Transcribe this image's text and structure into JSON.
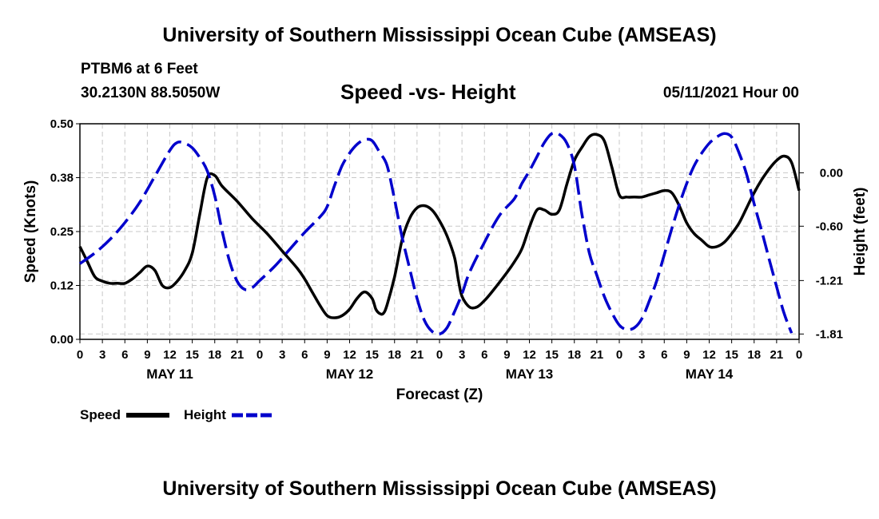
{
  "title": "University of Southern Mississippi Ocean Cube (AMSEAS)",
  "footer_title": "University of Southern Mississippi Ocean Cube (AMSEAS)",
  "station": "PTBM6 at 6 Feet",
  "coordinates": "30.2130N  88.5050W",
  "date_label": "05/11/2021 Hour 00",
  "colors": {
    "speed": "#000000",
    "height": "#0000cc",
    "grid": "#c8c8c8"
  },
  "chart_data": {
    "type": "line",
    "title": "Speed -vs- Height",
    "xlabel": "Forecast (Z)",
    "ylabel": "Speed (Knots)",
    "y2label": "Height (feet)",
    "xlim": [
      0,
      96
    ],
    "ylim": [
      0,
      0.5
    ],
    "y2lim": [
      -1.87,
      0.55
    ],
    "x_tick_labels": [
      "0",
      "3",
      "6",
      "9",
      "12",
      "15",
      "18",
      "21",
      "0",
      "3",
      "6",
      "9",
      "12",
      "15",
      "18",
      "21",
      "0",
      "3",
      "6",
      "9",
      "12",
      "15",
      "18",
      "21",
      "0",
      "3",
      "6",
      "9",
      "12",
      "15",
      "18",
      "21",
      "0"
    ],
    "date_labels": [
      {
        "x": 12,
        "label": "MAY 11"
      },
      {
        "x": 36,
        "label": "MAY 12"
      },
      {
        "x": 60,
        "label": "MAY 13"
      },
      {
        "x": 84,
        "label": "MAY 14"
      }
    ],
    "y_ticks": [
      {
        "value": 0.0,
        "label": "0.00"
      },
      {
        "value": 0.125,
        "label": "0.12"
      },
      {
        "value": 0.25,
        "label": "0.25"
      },
      {
        "value": 0.375,
        "label": "0.38"
      },
      {
        "value": 0.5,
        "label": "0.50"
      }
    ],
    "y2_ticks": [
      {
        "value": 0.0,
        "label": "0.00"
      },
      {
        "value": -0.6,
        "label": "-0.60"
      },
      {
        "value": -1.21,
        "label": "-1.21"
      },
      {
        "value": -1.81,
        "label": "-1.81"
      }
    ],
    "grid": true,
    "legend": {
      "position": "bottom-left",
      "entries": [
        "Speed",
        "Height"
      ]
    },
    "series": [
      {
        "name": "Speed",
        "axis": "left",
        "style": "solid",
        "points": [
          [
            0,
            0.215
          ],
          [
            1,
            0.18
          ],
          [
            2,
            0.145
          ],
          [
            3,
            0.135
          ],
          [
            4,
            0.13
          ],
          [
            5,
            0.13
          ],
          [
            6,
            0.13
          ],
          [
            7,
            0.14
          ],
          [
            8,
            0.155
          ],
          [
            9,
            0.17
          ],
          [
            10,
            0.16
          ],
          [
            11,
            0.125
          ],
          [
            12,
            0.12
          ],
          [
            13,
            0.135
          ],
          [
            14,
            0.16
          ],
          [
            15,
            0.2
          ],
          [
            16,
            0.29
          ],
          [
            17,
            0.375
          ],
          [
            18,
            0.38
          ],
          [
            19,
            0.355
          ],
          [
            21,
            0.32
          ],
          [
            23,
            0.28
          ],
          [
            25,
            0.245
          ],
          [
            27,
            0.205
          ],
          [
            29,
            0.165
          ],
          [
            30,
            0.14
          ],
          [
            31,
            0.11
          ],
          [
            32,
            0.08
          ],
          [
            33,
            0.055
          ],
          [
            34,
            0.05
          ],
          [
            35,
            0.055
          ],
          [
            36,
            0.07
          ],
          [
            37,
            0.095
          ],
          [
            38,
            0.11
          ],
          [
            39,
            0.095
          ],
          [
            39.5,
            0.07
          ],
          [
            40,
            0.06
          ],
          [
            40.5,
            0.06
          ],
          [
            41,
            0.08
          ],
          [
            42,
            0.145
          ],
          [
            43,
            0.23
          ],
          [
            44,
            0.28
          ],
          [
            45,
            0.305
          ],
          [
            46,
            0.31
          ],
          [
            47,
            0.3
          ],
          [
            48,
            0.275
          ],
          [
            49,
            0.24
          ],
          [
            50,
            0.19
          ],
          [
            50.5,
            0.14
          ],
          [
            51,
            0.1
          ],
          [
            52,
            0.075
          ],
          [
            53,
            0.075
          ],
          [
            54,
            0.09
          ],
          [
            55,
            0.11
          ],
          [
            57,
            0.155
          ],
          [
            58,
            0.18
          ],
          [
            59,
            0.21
          ],
          [
            60,
            0.26
          ],
          [
            61,
            0.3
          ],
          [
            62,
            0.3
          ],
          [
            63,
            0.29
          ],
          [
            64,
            0.3
          ],
          [
            65,
            0.36
          ],
          [
            66,
            0.415
          ],
          [
            67,
            0.445
          ],
          [
            68,
            0.47
          ],
          [
            69,
            0.475
          ],
          [
            70,
            0.46
          ],
          [
            71,
            0.4
          ],
          [
            72,
            0.335
          ],
          [
            73,
            0.33
          ],
          [
            74,
            0.33
          ],
          [
            75,
            0.33
          ],
          [
            76,
            0.335
          ],
          [
            77,
            0.34
          ],
          [
            78,
            0.345
          ],
          [
            79,
            0.34
          ],
          [
            80,
            0.31
          ],
          [
            81,
            0.27
          ],
          [
            82,
            0.245
          ],
          [
            83,
            0.23
          ],
          [
            84,
            0.215
          ],
          [
            85,
            0.215
          ],
          [
            86,
            0.225
          ],
          [
            87,
            0.245
          ],
          [
            88,
            0.27
          ],
          [
            89,
            0.305
          ],
          [
            90,
            0.34
          ],
          [
            91,
            0.37
          ],
          [
            92,
            0.395
          ],
          [
            93,
            0.415
          ],
          [
            94,
            0.425
          ],
          [
            95,
            0.41
          ],
          [
            96,
            0.345
          ]
        ]
      },
      {
        "name": "Height",
        "axis": "right",
        "style": "dashed",
        "points": [
          [
            0,
            -1.02
          ],
          [
            2,
            -0.9
          ],
          [
            4,
            -0.75
          ],
          [
            6,
            -0.56
          ],
          [
            8,
            -0.33
          ],
          [
            10,
            -0.04
          ],
          [
            12,
            0.25
          ],
          [
            13,
            0.34
          ],
          [
            14,
            0.33
          ],
          [
            15,
            0.28
          ],
          [
            16,
            0.17
          ],
          [
            17,
            0.02
          ],
          [
            18,
            -0.26
          ],
          [
            19,
            -0.66
          ],
          [
            20,
            -1.0
          ],
          [
            21,
            -1.22
          ],
          [
            22,
            -1.31
          ],
          [
            23,
            -1.29
          ],
          [
            24,
            -1.21
          ],
          [
            26,
            -1.05
          ],
          [
            28,
            -0.86
          ],
          [
            30,
            -0.67
          ],
          [
            32,
            -0.5
          ],
          [
            33,
            -0.38
          ],
          [
            34,
            -0.14
          ],
          [
            35,
            0.08
          ],
          [
            36,
            0.22
          ],
          [
            37,
            0.32
          ],
          [
            38,
            0.37
          ],
          [
            39,
            0.36
          ],
          [
            40,
            0.23
          ],
          [
            41,
            0.08
          ],
          [
            42,
            -0.3
          ],
          [
            43,
            -0.72
          ],
          [
            44,
            -1.07
          ],
          [
            45,
            -1.41
          ],
          [
            46,
            -1.66
          ],
          [
            47,
            -1.78
          ],
          [
            48,
            -1.81
          ],
          [
            49,
            -1.74
          ],
          [
            50,
            -1.56
          ],
          [
            51,
            -1.36
          ],
          [
            52,
            -1.12
          ],
          [
            54,
            -0.78
          ],
          [
            56,
            -0.48
          ],
          [
            58,
            -0.29
          ],
          [
            59,
            -0.12
          ],
          [
            60,
            0.02
          ],
          [
            61,
            0.18
          ],
          [
            62,
            0.34
          ],
          [
            63,
            0.44
          ],
          [
            64,
            0.43
          ],
          [
            65,
            0.33
          ],
          [
            66,
            0.08
          ],
          [
            67,
            -0.46
          ],
          [
            68,
            -0.9
          ],
          [
            69,
            -1.15
          ],
          [
            70,
            -1.39
          ],
          [
            71,
            -1.57
          ],
          [
            72,
            -1.71
          ],
          [
            73,
            -1.76
          ],
          [
            74,
            -1.74
          ],
          [
            75,
            -1.64
          ],
          [
            76,
            -1.44
          ],
          [
            77,
            -1.21
          ],
          [
            78,
            -0.92
          ],
          [
            79,
            -0.63
          ],
          [
            80,
            -0.36
          ],
          [
            81,
            -0.12
          ],
          [
            82,
            0.08
          ],
          [
            83,
            0.22
          ],
          [
            84,
            0.33
          ],
          [
            85,
            0.4
          ],
          [
            86,
            0.44
          ],
          [
            87,
            0.4
          ],
          [
            88,
            0.22
          ],
          [
            89,
            -0.02
          ],
          [
            90,
            -0.35
          ],
          [
            91,
            -0.65
          ],
          [
            92,
            -0.97
          ],
          [
            93,
            -1.28
          ],
          [
            94,
            -1.58
          ],
          [
            95,
            -1.8
          ]
        ]
      }
    ]
  }
}
